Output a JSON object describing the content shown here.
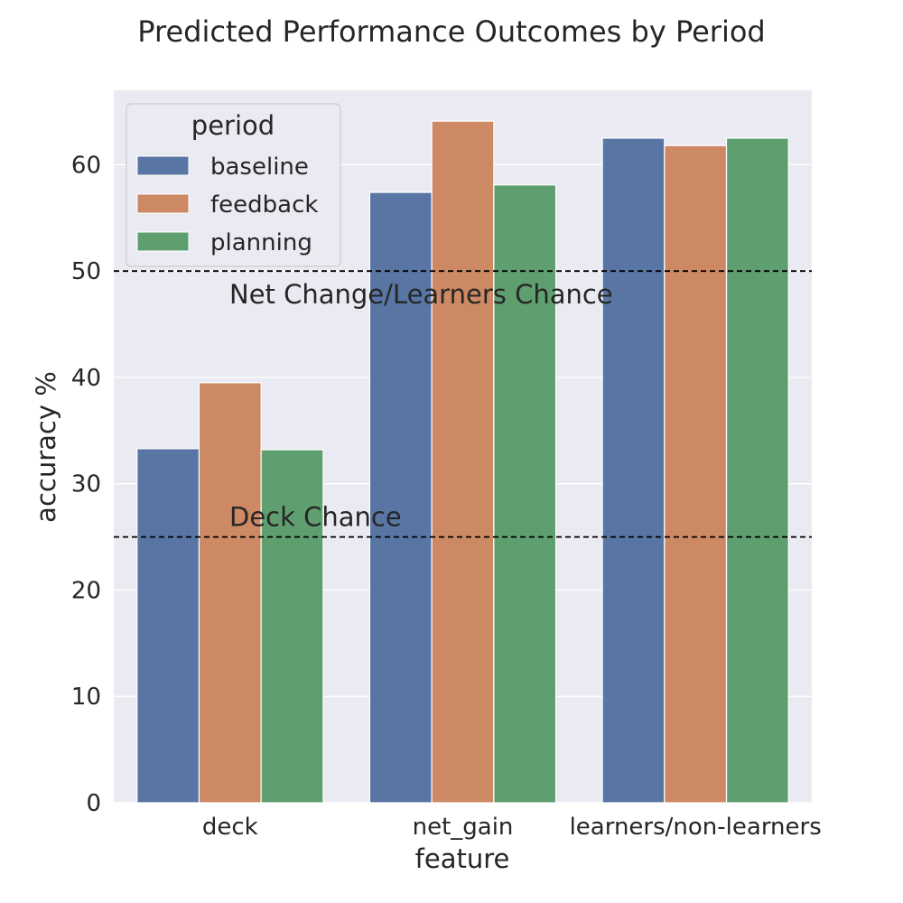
{
  "chart_data": {
    "type": "bar",
    "title": "Predicted Performance Outcomes by Period",
    "xlabel": "feature",
    "ylabel": "accuracy %",
    "categories": [
      "deck",
      "net_gain",
      "learners/non-learners"
    ],
    "series": [
      {
        "name": "baseline",
        "values": [
          33.3,
          57.4,
          62.5
        ],
        "color": "#5875a4"
      },
      {
        "name": "feedback",
        "values": [
          39.5,
          64.1,
          61.8
        ],
        "color": "#cc8963"
      },
      {
        "name": "planning",
        "values": [
          33.2,
          58.1,
          62.5
        ],
        "color": "#5f9e6e"
      }
    ],
    "ylim": [
      0,
      67
    ],
    "yticks": [
      0,
      10,
      20,
      30,
      40,
      50,
      60
    ],
    "grid": true,
    "background": "#eaeaf2",
    "legend": {
      "title": "period",
      "placement": "top-left"
    },
    "reference_lines": [
      {
        "value": 50,
        "label": "Net Change/Learners Chance",
        "style": "dashed",
        "color": "#000000"
      },
      {
        "value": 25,
        "label": "Deck Chance",
        "style": "dashed",
        "color": "#000000"
      }
    ]
  }
}
